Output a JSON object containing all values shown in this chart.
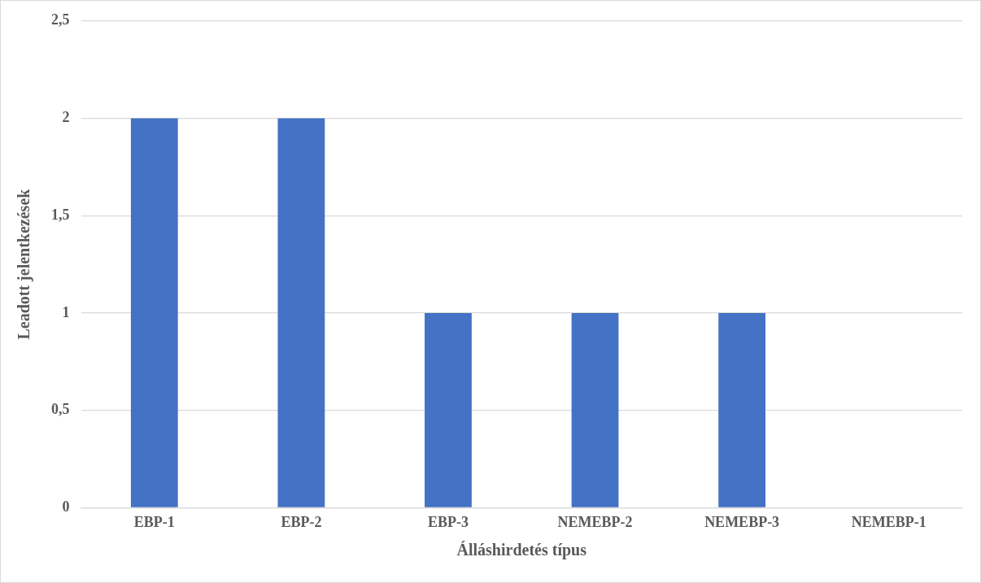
{
  "chart_data": {
    "type": "bar",
    "xlabel": "Álláshirdetés típus",
    "ylabel": "Leadott jelentkezések",
    "categories": [
      "EBP-1",
      "EBP-2",
      "EBP-3",
      "NEMEBP-2",
      "NEMEBP-3",
      "NEMEBP-1"
    ],
    "values": [
      2,
      2,
      1,
      1,
      1,
      0
    ],
    "color": "#4472c4",
    "ylim": [
      0,
      2.5
    ],
    "yticks": [
      0,
      {
        "value": 0.5,
        "label": "0,5"
      },
      1,
      {
        "value": 1.5,
        "label": "1,5"
      },
      2,
      {
        "value": 2.5,
        "label": "2,5"
      }
    ],
    "grid": "y",
    "legend": false
  }
}
